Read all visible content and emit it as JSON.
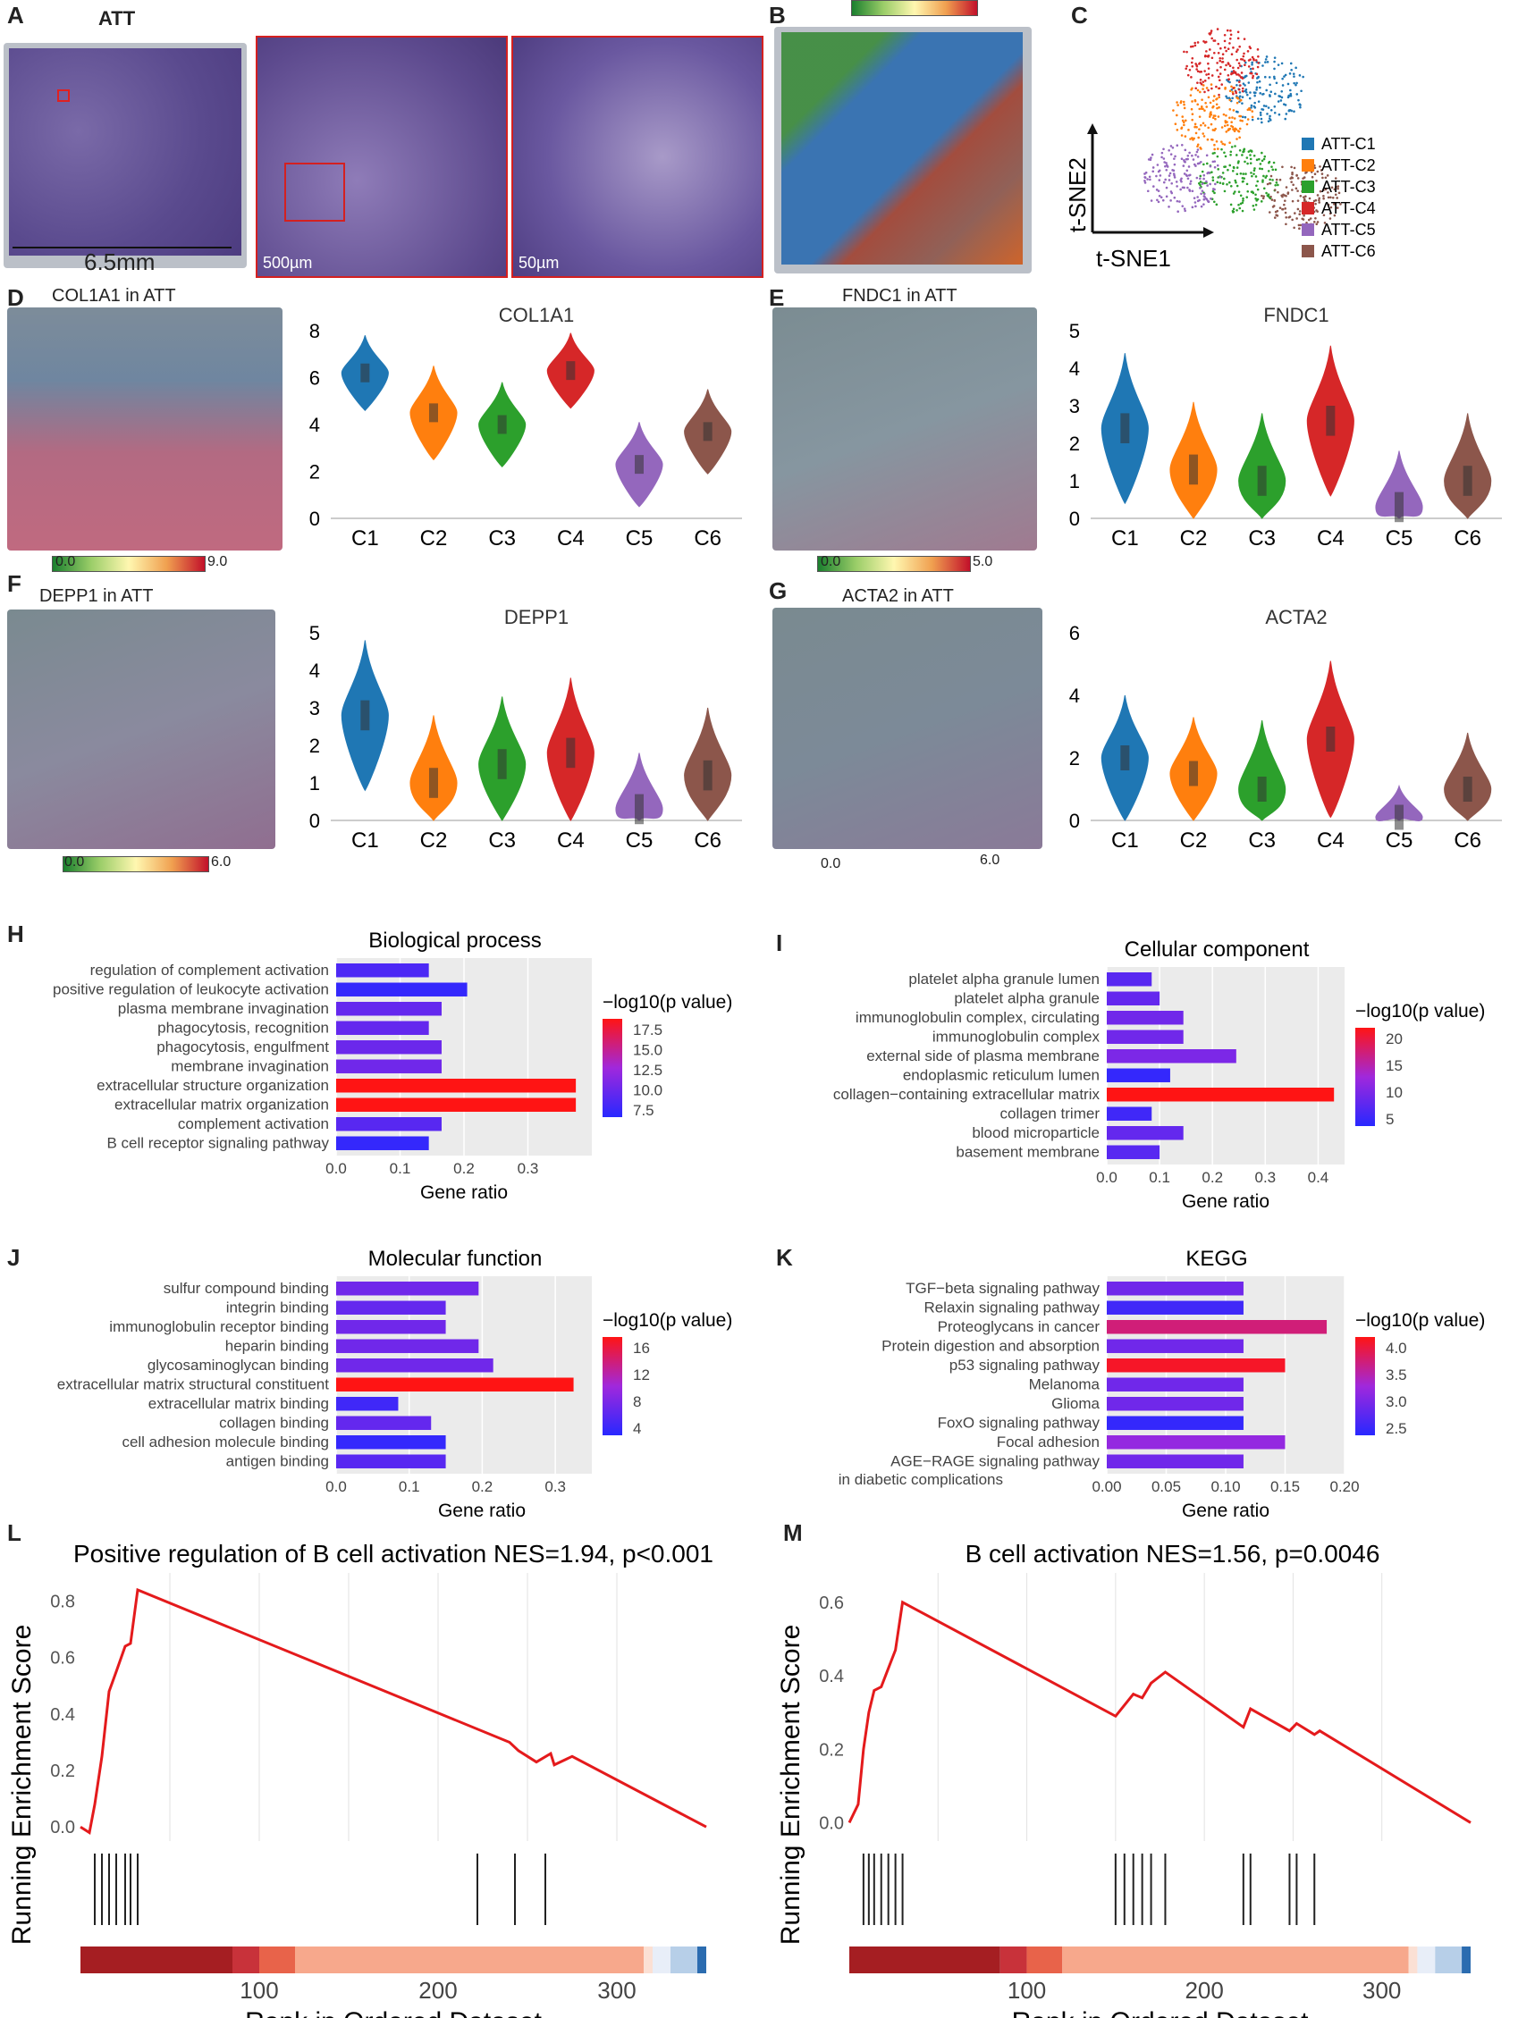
{
  "panel_letters": [
    "A",
    "B",
    "C",
    "D",
    "E",
    "F",
    "G",
    "H",
    "I",
    "J",
    "K",
    "L",
    "M"
  ],
  "panelA": {
    "title": "ATT",
    "scale_main": "6.5mm",
    "scale_zoom1": "500µm",
    "scale_zoom2": "50µm"
  },
  "panelC": {
    "xlabel": "t-SNE1",
    "ylabel": "t-SNE2",
    "legend": [
      "ATT-C1",
      "ATT-C2",
      "ATT-C3",
      "ATT-C4",
      "ATT-C5",
      "ATT-C6"
    ]
  },
  "colors": {
    "C1": "#1f77b4",
    "C2": "#ff7f0e",
    "C3": "#2ca02c",
    "C4": "#d62728",
    "C5": "#9467bd",
    "C6": "#8c564b",
    "gsea_line": "#e41a1c"
  },
  "spatial": [
    {
      "id": "D",
      "title": "COL1A1 in ATT",
      "cmin": "0.0",
      "cmax": "9.0"
    },
    {
      "id": "E",
      "title": "FNDC1 in ATT",
      "cmin": "0.0",
      "cmax": "5.0"
    },
    {
      "id": "F",
      "title": "DEPP1 in ATT",
      "cmin": "0.0",
      "cmax": "6.0"
    },
    {
      "id": "G",
      "title": "ACTA2 in ATT",
      "cmin": "0.0",
      "cmax": "6.0"
    }
  ],
  "chart_data": [
    {
      "id": "violin-COL1A1",
      "type": "violin",
      "title": "COL1A1",
      "categories": [
        "C1",
        "C2",
        "C3",
        "C4",
        "C5",
        "C6"
      ],
      "medians": [
        6.2,
        4.5,
        4.0,
        6.3,
        2.3,
        3.7
      ],
      "spreads": [
        1.6,
        2.0,
        1.8,
        1.6,
        1.8,
        1.8
      ],
      "ylim": [
        0,
        8
      ],
      "yticks": [
        0,
        2,
        4,
        6,
        8
      ]
    },
    {
      "id": "violin-FNDC1",
      "type": "violin",
      "title": "FNDC1",
      "categories": [
        "C1",
        "C2",
        "C3",
        "C4",
        "C5",
        "C6"
      ],
      "medians": [
        2.4,
        1.3,
        1.0,
        2.6,
        0.3,
        1.0
      ],
      "spreads": [
        2.0,
        1.8,
        1.8,
        2.0,
        1.5,
        1.8
      ],
      "ylim": [
        0,
        5
      ],
      "yticks": [
        0,
        1,
        2,
        3,
        4,
        5
      ]
    },
    {
      "id": "violin-DEPP1",
      "type": "violin",
      "title": "DEPP1",
      "categories": [
        "C1",
        "C2",
        "C3",
        "C4",
        "C5",
        "C6"
      ],
      "medians": [
        2.8,
        1.0,
        1.5,
        1.8,
        0.3,
        1.2
      ],
      "spreads": [
        2.0,
        1.8,
        1.8,
        2.0,
        1.5,
        1.8
      ],
      "ylim": [
        0,
        5
      ],
      "yticks": [
        0,
        1,
        2,
        3,
        4,
        5
      ]
    },
    {
      "id": "violin-ACTA2",
      "type": "violin",
      "title": "ACTA2",
      "categories": [
        "C1",
        "C2",
        "C3",
        "C4",
        "C5",
        "C6"
      ],
      "medians": [
        2.0,
        1.5,
        1.0,
        2.6,
        0.1,
        1.0
      ],
      "spreads": [
        2.0,
        1.8,
        2.2,
        2.5,
        1.0,
        1.8
      ],
      "ylim": [
        0,
        6
      ],
      "yticks": [
        0,
        2,
        4,
        6
      ]
    },
    {
      "id": "bar-H",
      "type": "bar",
      "title": "Biological process",
      "xlabel": "Gene ratio",
      "legend_title": "−log10(p value)",
      "legend_ticks": [
        "17.5",
        "15.0",
        "12.5",
        "10.0",
        "7.5"
      ],
      "xticks": [
        "0.0",
        "0.1",
        "0.2",
        "0.3"
      ],
      "xlim": [
        0,
        0.4
      ],
      "categories": [
        "regulation of complement activation",
        "positive regulation of leukocyte activation",
        "plasma membrane invagination",
        "phagocytosis, recognition",
        "phagocytosis, engulfment",
        "membrane invagination",
        "extracellular structure organization",
        "extracellular matrix organization",
        "complement activation",
        "B cell receptor signaling pathway"
      ],
      "values": [
        0.145,
        0.205,
        0.165,
        0.145,
        0.165,
        0.165,
        0.375,
        0.375,
        0.165,
        0.145
      ],
      "fills": [
        0.15,
        0.05,
        0.25,
        0.25,
        0.28,
        0.3,
        1.0,
        1.0,
        0.2,
        0.05
      ]
    },
    {
      "id": "bar-I",
      "type": "bar",
      "title": "Cellular component",
      "xlabel": "Gene ratio",
      "legend_title": "−log10(p value)",
      "legend_ticks": [
        "20",
        "15",
        "10",
        "5"
      ],
      "xticks": [
        "0.0",
        "0.1",
        "0.2",
        "0.3",
        "0.4"
      ],
      "xlim": [
        0,
        0.45
      ],
      "categories": [
        "platelet alpha granule lumen",
        "platelet alpha granule",
        "immunoglobulin complex, circulating",
        "immunoglobulin complex",
        "external side of plasma membrane",
        "endoplasmic reticulum lumen",
        "collagen−containing extracellular matrix",
        "collagen trimer",
        "blood microparticle",
        "basement membrane"
      ],
      "values": [
        0.085,
        0.1,
        0.145,
        0.145,
        0.245,
        0.12,
        0.43,
        0.085,
        0.145,
        0.1
      ],
      "fills": [
        0.2,
        0.25,
        0.3,
        0.3,
        0.35,
        0.05,
        1.0,
        0.1,
        0.25,
        0.2
      ]
    },
    {
      "id": "bar-J",
      "type": "bar",
      "title": "Molecular function",
      "xlabel": "Gene ratio",
      "legend_title": "−log10(p value)",
      "legend_ticks": [
        "16",
        "12",
        "8",
        "4"
      ],
      "xticks": [
        "0.0",
        "0.1",
        "0.2",
        "0.3"
      ],
      "xlim": [
        0,
        0.35
      ],
      "categories": [
        "sulfur compound binding",
        "integrin binding",
        "immunoglobulin receptor binding",
        "heparin binding",
        "glycosaminoglycan binding",
        "extracellular matrix structural constituent",
        "extracellular matrix binding",
        "collagen binding",
        "cell adhesion molecule binding",
        "antigen binding"
      ],
      "values": [
        0.195,
        0.15,
        0.15,
        0.195,
        0.215,
        0.325,
        0.085,
        0.13,
        0.15,
        0.15
      ],
      "fills": [
        0.3,
        0.25,
        0.3,
        0.3,
        0.3,
        1.0,
        0.1,
        0.25,
        0.05,
        0.2
      ]
    },
    {
      "id": "bar-K",
      "type": "bar",
      "title": "KEGG",
      "xlabel": "Gene ratio",
      "legend_title": "−log10(p value)",
      "legend_ticks": [
        "4.0",
        "3.5",
        "3.0",
        "2.5"
      ],
      "xticks": [
        "0.00",
        "0.05",
        "0.10",
        "0.15",
        "0.20"
      ],
      "xlim": [
        0,
        0.2
      ],
      "categories": [
        "TGF−beta signaling pathway",
        "Relaxin signaling pathway",
        "Proteoglycans in cancer",
        "Protein digestion and absorption",
        "p53 signaling pathway",
        "Melanoma",
        "Glioma",
        "FoxO signaling pathway",
        "Focal adhesion",
        "AGE−RAGE signaling pathway"
      ],
      "extra_label": "in diabetic complications",
      "values": [
        0.115,
        0.115,
        0.185,
        0.115,
        0.15,
        0.115,
        0.115,
        0.115,
        0.15,
        0.115
      ],
      "fills": [
        0.3,
        0.1,
        0.75,
        0.3,
        0.95,
        0.3,
        0.3,
        0.05,
        0.45,
        0.3
      ]
    },
    {
      "id": "gsea-L",
      "type": "line",
      "title": "Positive regulation of B cell activation NES=1.94, p<0.001",
      "xlabel": "Rank in Ordered Dataset",
      "ylabel": "Running Enrichment Score",
      "xlim": [
        0,
        350
      ],
      "ylim": [
        -0.05,
        0.9
      ],
      "xticks": [
        100,
        200,
        300
      ],
      "yticks": [
        "0.0",
        "0.2",
        "0.4",
        "0.6",
        "0.8"
      ],
      "x": [
        0,
        5,
        8,
        12,
        16,
        20,
        25,
        28,
        32,
        240,
        245,
        255,
        263,
        265,
        275,
        350
      ],
      "y": [
        0.0,
        -0.02,
        0.08,
        0.25,
        0.48,
        0.55,
        0.64,
        0.65,
        0.84,
        0.3,
        0.27,
        0.23,
        0.26,
        0.22,
        0.25,
        0.0
      ],
      "hits": [
        8,
        12,
        16,
        20,
        25,
        28,
        32,
        222,
        243,
        260
      ]
    },
    {
      "id": "gsea-M",
      "type": "line",
      "title": "B cell activation NES=1.56, p=0.0046",
      "xlabel": "Rank in Ordered Dataset",
      "ylabel": "Running Enrichment Score",
      "xlim": [
        0,
        350
      ],
      "ylim": [
        -0.05,
        0.68
      ],
      "xticks": [
        100,
        200,
        300
      ],
      "yticks": [
        "0.0",
        "0.2",
        "0.4",
        "0.6"
      ],
      "x": [
        0,
        5,
        8,
        11,
        14,
        18,
        22,
        26,
        30,
        150,
        155,
        160,
        165,
        170,
        178,
        222,
        226,
        248,
        252,
        262,
        265,
        350
      ],
      "y": [
        0.0,
        0.05,
        0.2,
        0.3,
        0.36,
        0.37,
        0.42,
        0.47,
        0.6,
        0.29,
        0.32,
        0.35,
        0.34,
        0.38,
        0.41,
        0.26,
        0.31,
        0.25,
        0.27,
        0.24,
        0.25,
        0.0
      ],
      "hits": [
        8,
        11,
        14,
        18,
        22,
        26,
        30,
        150,
        155,
        160,
        165,
        170,
        178,
        222,
        226,
        248,
        252,
        262
      ]
    }
  ]
}
